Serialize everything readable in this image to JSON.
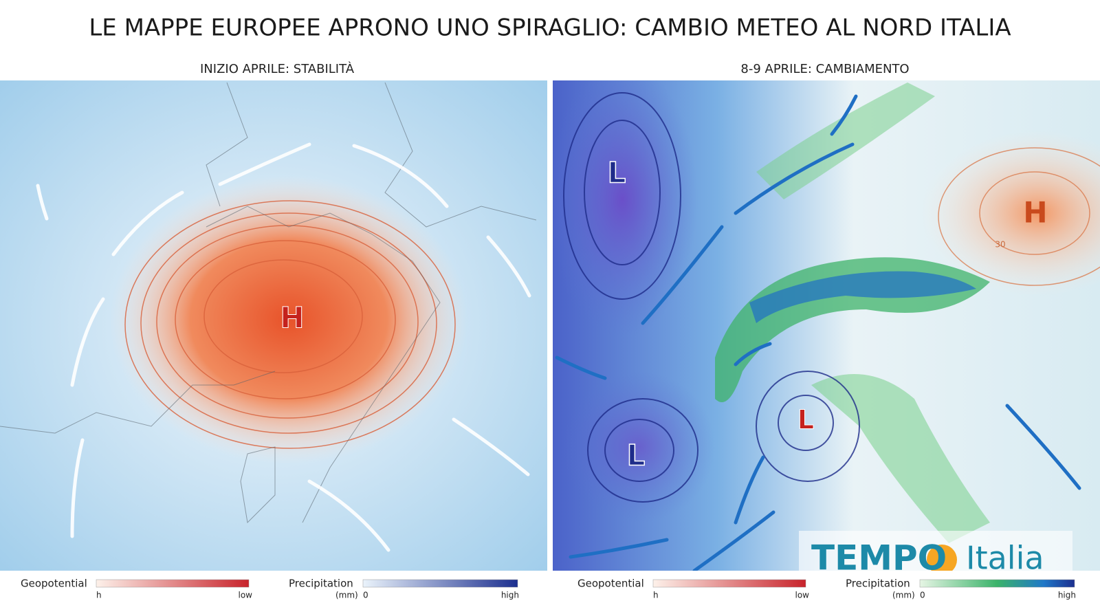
{
  "title": "LE MAPPE EUROPEE APRONO UNO SPIRAGLIO: CAMBIO METEO AL NORD ITALIA",
  "panels": [
    {
      "title": "INIZIO APRILE: STABILITÀ",
      "labels": [
        "H"
      ],
      "legend": [
        {
          "name": "Geopotential",
          "min": "h",
          "max": "low"
        },
        {
          "name": "Precipitation",
          "unit": "(mm)",
          "min": "0",
          "max": "high"
        }
      ]
    },
    {
      "title": "8-9 APRILE: CAMBIAMENTO",
      "labels": [
        "L",
        "L",
        "L",
        "H",
        "30"
      ],
      "legend": [
        {
          "name": "Geopotential",
          "min": "h",
          "max": "low"
        },
        {
          "name": "Precipitation",
          "unit": "(mm)",
          "min": "0",
          "max": "high"
        }
      ]
    }
  ],
  "logo": {
    "brand": "TEMPO",
    "suffix": "Italia"
  }
}
